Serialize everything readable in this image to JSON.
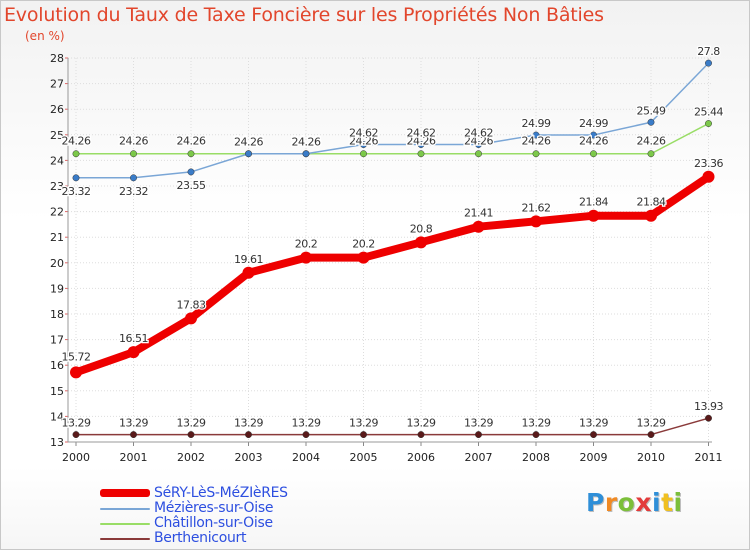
{
  "title": "Evolution du Taux de Taxe Foncière sur les Propriétés Non Bâties",
  "unit_label": "(en %)",
  "logo": {
    "text": "Proxiti",
    "colors": [
      "#2f8fd8",
      "#f08a24",
      "#7cbf3a",
      "#e33b3b",
      "#2f8fd8",
      "#f0c020",
      "#7cbf3a"
    ]
  },
  "chart_data": {
    "type": "line",
    "title": "Evolution du Taux de Taxe Foncière sur les Propriétés Non Bâties",
    "ylabel": "(en %)",
    "x": [
      "2000",
      "2001",
      "2002",
      "2003",
      "2004",
      "2005",
      "2006",
      "2007",
      "2008",
      "2009",
      "2010",
      "2011"
    ],
    "ylim": [
      13,
      28
    ],
    "yticks": [
      13,
      14,
      15,
      16,
      17,
      18,
      19,
      20,
      21,
      22,
      23,
      24,
      25,
      26,
      27,
      28
    ],
    "grid": true,
    "legend_position": "bottom-left",
    "series": [
      {
        "name": "SéRY-LèS-MéZIèRES",
        "color": "#ee0000",
        "marker_color": "#ee0000",
        "thick": true,
        "values": [
          15.72,
          16.51,
          17.83,
          19.61,
          20.2,
          20.2,
          20.8,
          21.41,
          21.62,
          21.84,
          21.84,
          23.36
        ],
        "labels": [
          "15.72",
          "16.51",
          "17.83",
          "19.61",
          "20.2",
          "20.2",
          "20.8",
          "21.41",
          "21.62",
          "21.84",
          "21.84",
          "23.36"
        ]
      },
      {
        "name": "Mézières-sur-Oise",
        "color": "#7aa6d6",
        "marker_color": "#3a7cc8",
        "thick": false,
        "values": [
          23.32,
          23.32,
          23.55,
          24.26,
          24.26,
          24.62,
          24.62,
          24.62,
          24.99,
          24.99,
          25.49,
          27.8
        ],
        "labels": [
          "23.32",
          "23.32",
          "23.55",
          "24.26",
          "24.26",
          "24.62",
          "24.62",
          "24.62",
          "24.99",
          "24.99",
          "25.49",
          "27.8"
        ]
      },
      {
        "name": "Châtillon-sur-Oise",
        "color": "#99dd66",
        "marker_color": "#7cc84a",
        "thick": false,
        "values": [
          24.26,
          24.26,
          24.26,
          24.26,
          24.26,
          24.26,
          24.26,
          24.26,
          24.26,
          24.26,
          24.26,
          25.44
        ],
        "labels": [
          "24.26",
          "24.26",
          "24.26",
          "24.26",
          "24.26",
          "24.26",
          "24.26",
          "24.26",
          "24.26",
          "24.26",
          "24.26",
          "25.44"
        ]
      },
      {
        "name": "Berthenicourt",
        "color": "#8a3a3a",
        "marker_color": "#5a1a1a",
        "thick": false,
        "values": [
          13.29,
          13.29,
          13.29,
          13.29,
          13.29,
          13.29,
          13.29,
          13.29,
          13.29,
          13.29,
          13.29,
          13.93
        ],
        "labels": [
          "13.29",
          "13.29",
          "13.29",
          "13.29",
          "13.29",
          "13.29",
          "13.29",
          "13.29",
          "13.29",
          "13.29",
          "13.29",
          "13.93"
        ]
      }
    ]
  }
}
